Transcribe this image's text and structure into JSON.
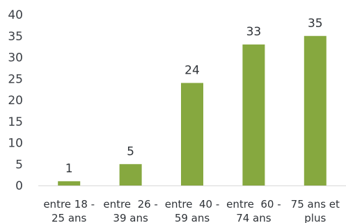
{
  "chart_data": {
    "type": "bar",
    "categories": [
      [
        "entre 18 -",
        "25 ans"
      ],
      [
        "entre  26 -",
        "39 ans"
      ],
      [
        "entre  40 -",
        "59 ans"
      ],
      [
        "entre  60 -",
        "74 ans"
      ],
      [
        "75 ans et",
        "plus"
      ]
    ],
    "values": [
      1,
      5,
      24,
      33,
      35
    ],
    "data_labels": [
      "1",
      "5",
      "24",
      "33",
      "35"
    ],
    "y_ticks": [
      0,
      5,
      10,
      15,
      20,
      25,
      30,
      35,
      40
    ],
    "ylim": [
      0,
      40
    ],
    "grid": false,
    "bar_color": "#86a83f",
    "axis_color": "#d9d9d9"
  }
}
